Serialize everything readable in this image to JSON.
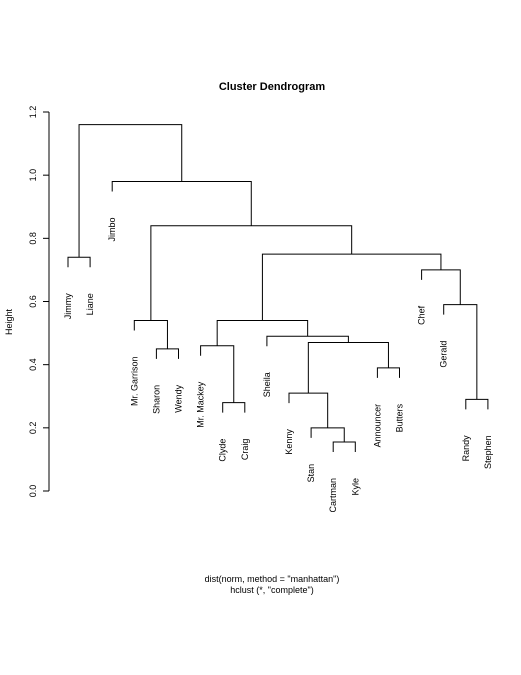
{
  "chart_data": {
    "type": "dendrogram",
    "title": "Cluster Dendrogram",
    "ylabel": "Height",
    "xlabel": "dist(norm, method = \"manhattan\")",
    "sub": "hclust (*, \"complete\")",
    "ylim": [
      0,
      1.2
    ],
    "yticks": [
      "0.0",
      "0.2",
      "0.4",
      "0.6",
      "0.8",
      "1.0",
      "1.2"
    ],
    "leaves": [
      {
        "label": "Jimmy",
        "height": 0.74
      },
      {
        "label": "Liane",
        "height": 0.74
      },
      {
        "label": "Jimbo",
        "height": 0.98
      },
      {
        "label": "Mr. Garrison",
        "height": 0.54
      },
      {
        "label": "Sharon",
        "height": 0.45
      },
      {
        "label": "Wendy",
        "height": 0.45
      },
      {
        "label": "Mr. Mackey",
        "height": 0.46
      },
      {
        "label": "Clyde",
        "height": 0.28
      },
      {
        "label": "Craig",
        "height": 0.28
      },
      {
        "label": "Sheila",
        "height": 0.49
      },
      {
        "label": "Kenny",
        "height": 0.31
      },
      {
        "label": "Stan",
        "height": 0.2
      },
      {
        "label": "Cartman",
        "height": 0.155
      },
      {
        "label": "Kyle",
        "height": 0.155
      },
      {
        "label": "Announcer",
        "height": 0.39
      },
      {
        "label": "Butters",
        "height": 0.39
      },
      {
        "label": "Chef",
        "height": 0.7
      },
      {
        "label": "Gerald",
        "height": 0.59
      },
      {
        "label": "Randy",
        "height": 0.29
      },
      {
        "label": "Stephen",
        "height": 0.29
      }
    ],
    "merges": [
      {
        "left": "Jimmy",
        "right": "Liane",
        "height": 0.74
      },
      {
        "left": "Sharon",
        "right": "Wendy",
        "height": 0.45
      },
      {
        "left": "Mr. Garrison",
        "right": "Sharon+Wendy",
        "height": 0.54
      },
      {
        "left": "Clyde",
        "right": "Craig",
        "height": 0.28
      },
      {
        "left": "Mr. Mackey",
        "right": "Clyde+Craig",
        "height": 0.46
      },
      {
        "left": "Cartman",
        "right": "Kyle",
        "height": 0.155
      },
      {
        "left": "Stan",
        "right": "Cartman+Kyle",
        "height": 0.2
      },
      {
        "left": "Kenny",
        "right": "Stan+Cartman+Kyle",
        "height": 0.31
      },
      {
        "left": "Announcer",
        "right": "Butters",
        "height": 0.39
      },
      {
        "left": "Kenny-group",
        "right": "Announcer+Butters",
        "height": 0.47
      },
      {
        "left": "Sheila",
        "right": "Kenny..Butters",
        "height": 0.49
      },
      {
        "left": "Mackey-group",
        "right": "Sheila-group",
        "height": 0.54
      },
      {
        "left": "Randy",
        "right": "Stephen",
        "height": 0.29
      },
      {
        "left": "Gerald",
        "right": "Randy+Stephen",
        "height": 0.59
      },
      {
        "left": "Chef",
        "right": "Gerald-group",
        "height": 0.7
      },
      {
        "left": "Mackey..Butters",
        "right": "Chef-group",
        "height": 0.75
      },
      {
        "left": "Garrison-group",
        "right": "Mackey..Stephen",
        "height": 0.84
      },
      {
        "left": "Jimbo",
        "right": "Garrison..Stephen",
        "height": 0.98
      },
      {
        "left": "Jimmy+Liane",
        "right": "Jimbo..Stephen",
        "height": 1.16
      }
    ]
  }
}
